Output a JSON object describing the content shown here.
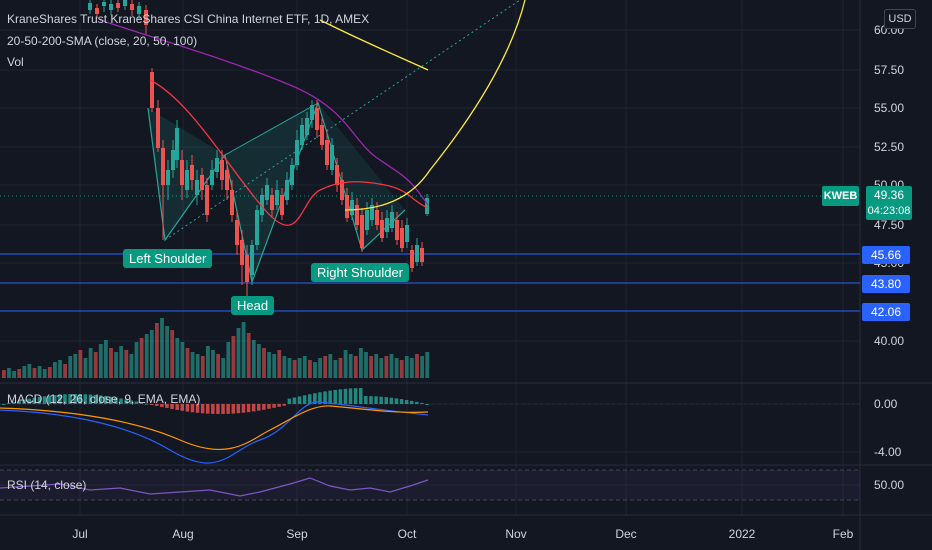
{
  "header": {
    "title": "KraneShares Trust KraneShares CSI China Internet ETF, 1D, AMEX",
    "sma_legend": "20-50-200-SMA (close, 20, 50, 100)",
    "vol_legend": "Vol",
    "macd_legend": "MACD (12, 26, close, 9, EMA, EMA)",
    "rsi_legend": "RSI (14, close)"
  },
  "currency_button": "USD",
  "symbol_tag": "KWEB",
  "last_price": "49.36",
  "countdown": "04:23:08",
  "price_axis_labels": [
    "60.00",
    "57.50",
    "55.00",
    "52.50",
    "50.00",
    "47.50",
    "45.00",
    "40.00"
  ],
  "horizontal_levels": [
    {
      "label": "45.66"
    },
    {
      "label": "43.80"
    },
    {
      "label": "42.06"
    }
  ],
  "macd_axis_labels": [
    "0.00",
    "-4.00"
  ],
  "rsi_axis_labels": [
    "50.00"
  ],
  "time_axis_labels": [
    "Jul",
    "Aug",
    "Sep",
    "Oct",
    "Nov",
    "Dec",
    "2022",
    "Feb"
  ],
  "pattern_labels": {
    "left_shoulder": "Left Shoulder",
    "head": "Head",
    "right_shoulder": "Right Shoulder"
  },
  "colors": {
    "background": "#131722",
    "up": "#26a69a",
    "down": "#ef5350",
    "sma20": "#f23645",
    "sma50": "#9c27b0",
    "curve": "#ffeb3b",
    "level": "#2962ff",
    "macd": "#2962ff",
    "signal": "#ff9800",
    "rsi": "#7e57c2"
  }
}
